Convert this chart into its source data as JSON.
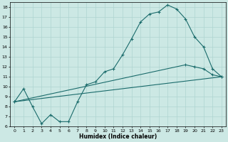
{
  "xlabel": "Humidex (Indice chaleur)",
  "bg_color": "#cce8e4",
  "line_color": "#1a6b6b",
  "grid_color": "#aed4d0",
  "xlim": [
    -0.5,
    23.5
  ],
  "ylim": [
    6,
    18.5
  ],
  "xticks": [
    0,
    1,
    2,
    3,
    4,
    5,
    6,
    7,
    8,
    9,
    10,
    11,
    12,
    13,
    14,
    15,
    16,
    17,
    18,
    19,
    20,
    21,
    22,
    23
  ],
  "yticks": [
    6,
    7,
    8,
    9,
    10,
    11,
    12,
    13,
    14,
    15,
    16,
    17,
    18
  ],
  "line1_x": [
    0,
    1,
    2,
    3,
    4,
    5,
    6,
    7,
    8,
    9,
    10,
    11,
    12,
    13,
    14,
    15,
    16,
    17,
    18,
    19,
    20,
    21,
    22,
    23
  ],
  "line1_y": [
    8.5,
    9.8,
    8.0,
    6.3,
    7.2,
    6.5,
    6.5,
    8.5,
    10.2,
    10.5,
    11.5,
    11.8,
    13.2,
    14.8,
    16.5,
    17.3,
    17.5,
    18.2,
    17.8,
    16.8,
    15.0,
    14.0,
    11.8,
    11.0
  ],
  "line2_x": [
    0,
    23
  ],
  "line2_y": [
    8.5,
    11.0
  ],
  "line3_x": [
    0,
    19,
    20,
    21,
    22,
    23
  ],
  "line3_y": [
    8.5,
    12.2,
    12.0,
    11.8,
    11.2,
    11.0
  ]
}
